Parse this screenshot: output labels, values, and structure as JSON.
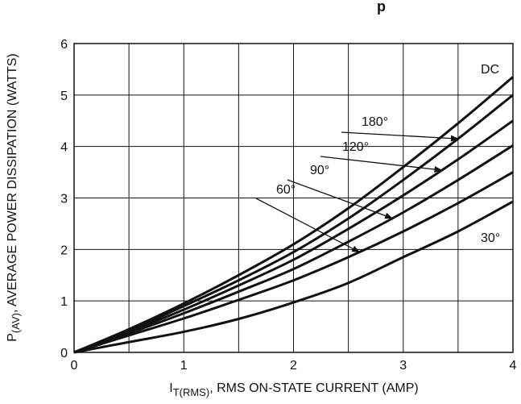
{
  "chart_data": {
    "type": "line",
    "title_fragment": "p",
    "xlabel": {
      "main": "I",
      "sub": "T(RMS)",
      "rest": ", RMS ON-STATE CURRENT (AMP)"
    },
    "ylabel": {
      "main": "P",
      "sub": "(AV)",
      "rest": ", AVERAGE POWER DISSIPATION (WATTS)"
    },
    "xlim": [
      0,
      4
    ],
    "ylim": [
      0,
      6
    ],
    "x_ticks": [
      0,
      1,
      2,
      3,
      4
    ],
    "y_ticks": [
      0,
      1,
      2,
      3,
      4,
      5,
      6
    ],
    "grid": true,
    "series": [
      {
        "name": "DC",
        "x": [
          0,
          0.5,
          1.0,
          1.5,
          2.0,
          2.5,
          3.0,
          3.5,
          4.0
        ],
        "y": [
          0,
          0.45,
          0.95,
          1.5,
          2.1,
          2.8,
          3.6,
          4.45,
          5.35
        ]
      },
      {
        "name": "180°",
        "x": [
          0,
          0.5,
          1.0,
          1.5,
          2.0,
          2.5,
          3.0,
          3.5,
          4.0
        ],
        "y": [
          0,
          0.42,
          0.9,
          1.4,
          1.95,
          2.6,
          3.35,
          4.15,
          5.0
        ]
      },
      {
        "name": "120°",
        "x": [
          0,
          0.5,
          1.0,
          1.5,
          2.0,
          2.5,
          3.0,
          3.5,
          4.0
        ],
        "y": [
          0,
          0.4,
          0.83,
          1.3,
          1.8,
          2.4,
          3.05,
          3.75,
          4.5
        ]
      },
      {
        "name": "90°",
        "x": [
          0,
          0.5,
          1.0,
          1.5,
          2.0,
          2.5,
          3.0,
          3.5,
          4.0
        ],
        "y": [
          0,
          0.37,
          0.76,
          1.18,
          1.62,
          2.15,
          2.72,
          3.35,
          4.02
        ]
      },
      {
        "name": "60°",
        "x": [
          0,
          0.5,
          1.0,
          1.5,
          2.0,
          2.5,
          3.0,
          3.5,
          4.0
        ],
        "y": [
          0,
          0.33,
          0.66,
          1.02,
          1.4,
          1.85,
          2.35,
          2.9,
          3.5
        ]
      },
      {
        "name": "30°",
        "x": [
          0,
          0.5,
          1.0,
          1.5,
          2.0,
          2.5,
          3.0,
          3.5,
          4.0
        ],
        "y": [
          0,
          0.2,
          0.4,
          0.65,
          0.97,
          1.35,
          1.85,
          2.35,
          2.93
        ]
      }
    ],
    "annotations": [
      {
        "text": "DC",
        "series": "DC"
      },
      {
        "text": "180°",
        "series": "180°",
        "arrow_x": 3.5
      },
      {
        "text": "120°",
        "series": "120°",
        "arrow_x": 3.35
      },
      {
        "text": "90°",
        "series": "90°",
        "arrow_x": 2.9
      },
      {
        "text": "60°",
        "series": "60°",
        "arrow_x": 2.6
      },
      {
        "text": "30°",
        "series": "30°"
      }
    ]
  }
}
